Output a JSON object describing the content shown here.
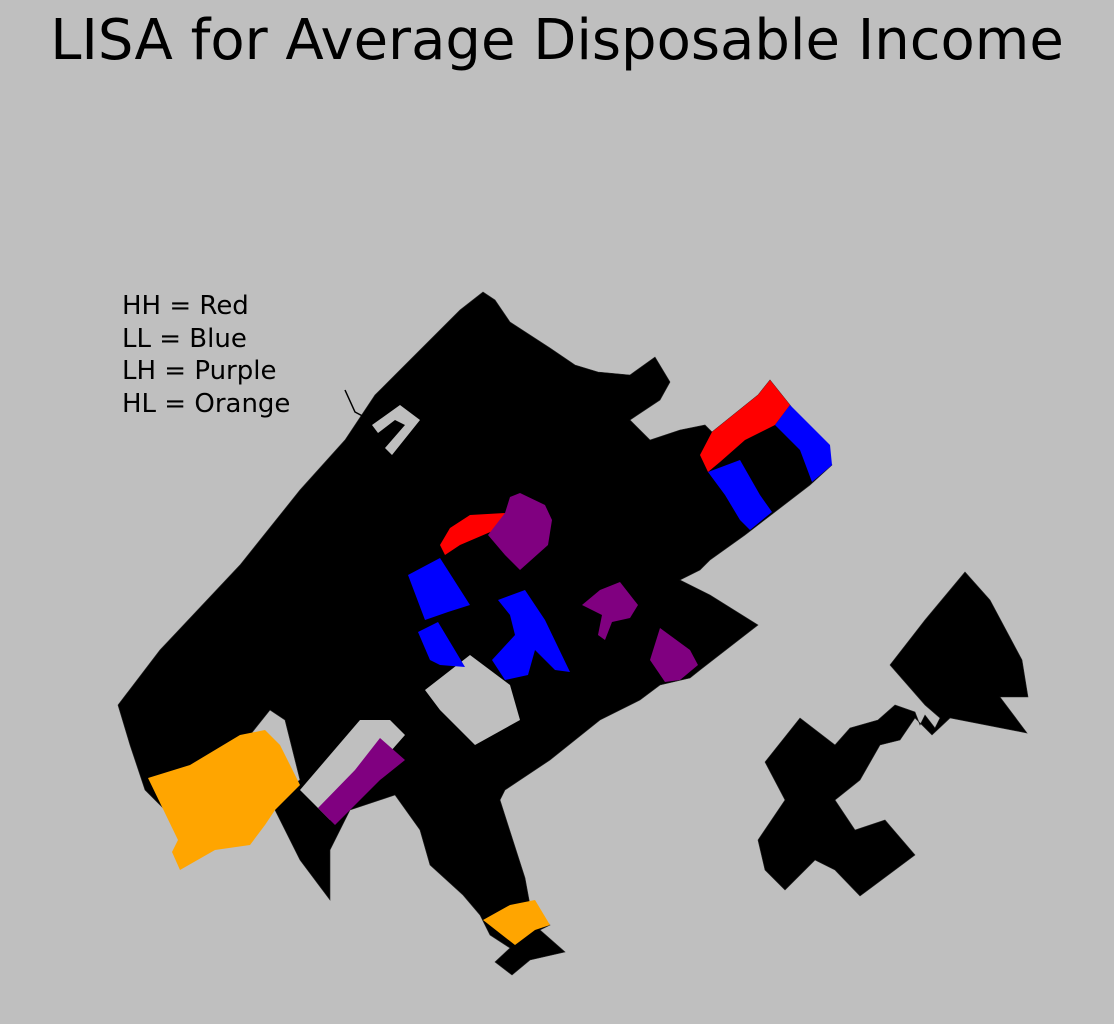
{
  "title": "LISA for Average Disposable Income",
  "legend": [
    {
      "key": "HH",
      "label": "HH = Red",
      "color": "#ff0000"
    },
    {
      "key": "LL",
      "label": "LL = Blue",
      "color": "#0000ff"
    },
    {
      "key": "LH",
      "label": "LH = Purple",
      "color": "#800080"
    },
    {
      "key": "HL",
      "label": "HL = Orange",
      "color": "#ffa500"
    }
  ],
  "colors": {
    "background": "#bfbfbf",
    "not_significant": "#000000"
  }
}
